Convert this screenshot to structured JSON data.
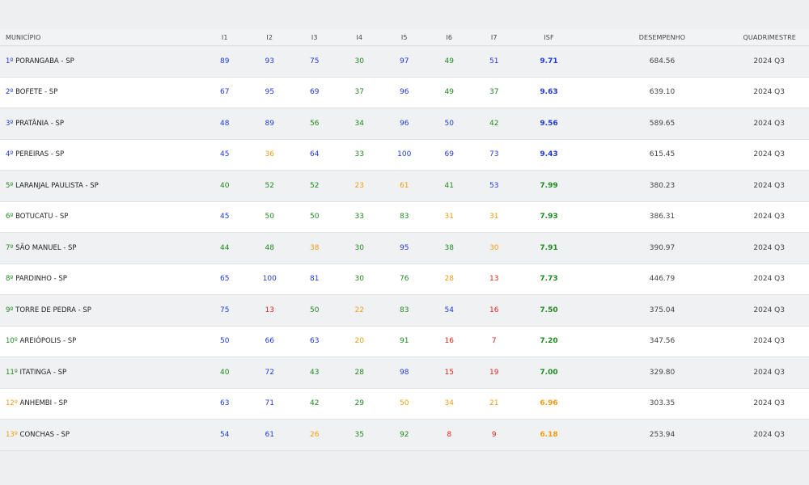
{
  "colors": {
    "blue": "#1f39d8",
    "green": "#1e8a1e",
    "orange": "#f39c12",
    "red": "#e0261c"
  },
  "header": {
    "municipio": "MUNICÍPIO",
    "i1": "I1",
    "i2": "I2",
    "i3": "I3",
    "i4": "I4",
    "i5": "I5",
    "i6": "I6",
    "i7": "I7",
    "isf": "ISF",
    "desempenho": "DESEMPENHO",
    "quadrimestre": "QUADRIMESTRE"
  },
  "rows": [
    {
      "rank": "1º",
      "name": "PORANGABA - SP",
      "rank_color": "blue",
      "i": [
        [
          "89",
          "blue"
        ],
        [
          "93",
          "blue"
        ],
        [
          "75",
          "blue"
        ],
        [
          "30",
          "green"
        ],
        [
          "97",
          "blue"
        ],
        [
          "49",
          "green"
        ],
        [
          "51",
          "blue"
        ]
      ],
      "isf": "9.71",
      "isf_color": "blue",
      "desempenho": "684.56",
      "quadrimestre": "2024 Q3"
    },
    {
      "rank": "2º",
      "name": "BOFETE - SP",
      "rank_color": "blue",
      "i": [
        [
          "67",
          "blue"
        ],
        [
          "95",
          "blue"
        ],
        [
          "69",
          "blue"
        ],
        [
          "37",
          "green"
        ],
        [
          "96",
          "blue"
        ],
        [
          "49",
          "green"
        ],
        [
          "37",
          "green"
        ]
      ],
      "isf": "9.63",
      "isf_color": "blue",
      "desempenho": "639.10",
      "quadrimestre": "2024 Q3"
    },
    {
      "rank": "3º",
      "name": "PRATÂNIA - SP",
      "rank_color": "blue",
      "i": [
        [
          "48",
          "blue"
        ],
        [
          "89",
          "blue"
        ],
        [
          "56",
          "green"
        ],
        [
          "34",
          "green"
        ],
        [
          "96",
          "blue"
        ],
        [
          "50",
          "blue"
        ],
        [
          "42",
          "green"
        ]
      ],
      "isf": "9.56",
      "isf_color": "blue",
      "desempenho": "589.65",
      "quadrimestre": "2024 Q3"
    },
    {
      "rank": "4º",
      "name": "PEREIRAS - SP",
      "rank_color": "blue",
      "i": [
        [
          "45",
          "blue"
        ],
        [
          "36",
          "orange"
        ],
        [
          "64",
          "blue"
        ],
        [
          "33",
          "green"
        ],
        [
          "100",
          "blue"
        ],
        [
          "69",
          "blue"
        ],
        [
          "73",
          "blue"
        ]
      ],
      "isf": "9.43",
      "isf_color": "blue",
      "desempenho": "615.45",
      "quadrimestre": "2024 Q3"
    },
    {
      "rank": "5º",
      "name": "LARANJAL PAULISTA - SP",
      "rank_color": "green",
      "i": [
        [
          "40",
          "green"
        ],
        [
          "52",
          "green"
        ],
        [
          "52",
          "green"
        ],
        [
          "23",
          "orange"
        ],
        [
          "61",
          "orange"
        ],
        [
          "41",
          "green"
        ],
        [
          "53",
          "blue"
        ]
      ],
      "isf": "7.99",
      "isf_color": "green",
      "desempenho": "380.23",
      "quadrimestre": "2024 Q3"
    },
    {
      "rank": "6º",
      "name": "BOTUCATU - SP",
      "rank_color": "green",
      "i": [
        [
          "45",
          "blue"
        ],
        [
          "50",
          "green"
        ],
        [
          "50",
          "green"
        ],
        [
          "33",
          "green"
        ],
        [
          "83",
          "green"
        ],
        [
          "31",
          "orange"
        ],
        [
          "31",
          "orange"
        ]
      ],
      "isf": "7.93",
      "isf_color": "green",
      "desempenho": "386.31",
      "quadrimestre": "2024 Q3"
    },
    {
      "rank": "7º",
      "name": "SÃO MANUEL - SP",
      "rank_color": "green",
      "i": [
        [
          "44",
          "green"
        ],
        [
          "48",
          "green"
        ],
        [
          "38",
          "orange"
        ],
        [
          "30",
          "green"
        ],
        [
          "95",
          "blue"
        ],
        [
          "38",
          "green"
        ],
        [
          "30",
          "orange"
        ]
      ],
      "isf": "7.91",
      "isf_color": "green",
      "desempenho": "390.97",
      "quadrimestre": "2024 Q3"
    },
    {
      "rank": "8º",
      "name": "PARDINHO - SP",
      "rank_color": "green",
      "i": [
        [
          "65",
          "blue"
        ],
        [
          "100",
          "blue"
        ],
        [
          "81",
          "blue"
        ],
        [
          "30",
          "green"
        ],
        [
          "76",
          "green"
        ],
        [
          "28",
          "orange"
        ],
        [
          "13",
          "red"
        ]
      ],
      "isf": "7.73",
      "isf_color": "green",
      "desempenho": "446.79",
      "quadrimestre": "2024 Q3"
    },
    {
      "rank": "9º",
      "name": "TORRE DE PEDRA - SP",
      "rank_color": "green",
      "i": [
        [
          "75",
          "blue"
        ],
        [
          "13",
          "red"
        ],
        [
          "50",
          "green"
        ],
        [
          "22",
          "orange"
        ],
        [
          "83",
          "green"
        ],
        [
          "54",
          "blue"
        ],
        [
          "16",
          "red"
        ]
      ],
      "isf": "7.50",
      "isf_color": "green",
      "desempenho": "375.04",
      "quadrimestre": "2024 Q3"
    },
    {
      "rank": "10º",
      "name": "AREIÓPOLIS - SP",
      "rank_color": "green",
      "i": [
        [
          "50",
          "blue"
        ],
        [
          "66",
          "blue"
        ],
        [
          "63",
          "blue"
        ],
        [
          "20",
          "orange"
        ],
        [
          "91",
          "green"
        ],
        [
          "16",
          "red"
        ],
        [
          "7",
          "red"
        ]
      ],
      "isf": "7.20",
      "isf_color": "green",
      "desempenho": "347.56",
      "quadrimestre": "2024 Q3"
    },
    {
      "rank": "11º",
      "name": "ITATINGA - SP",
      "rank_color": "green",
      "i": [
        [
          "40",
          "green"
        ],
        [
          "72",
          "blue"
        ],
        [
          "43",
          "green"
        ],
        [
          "28",
          "green"
        ],
        [
          "98",
          "blue"
        ],
        [
          "15",
          "red"
        ],
        [
          "19",
          "red"
        ]
      ],
      "isf": "7.00",
      "isf_color": "green",
      "desempenho": "329.80",
      "quadrimestre": "2024 Q3"
    },
    {
      "rank": "12º",
      "name": "ANHEMBI - SP",
      "rank_color": "orange",
      "i": [
        [
          "63",
          "blue"
        ],
        [
          "71",
          "blue"
        ],
        [
          "42",
          "green"
        ],
        [
          "29",
          "green"
        ],
        [
          "50",
          "orange"
        ],
        [
          "34",
          "orange"
        ],
        [
          "21",
          "orange"
        ]
      ],
      "isf": "6.96",
      "isf_color": "orange",
      "desempenho": "303.35",
      "quadrimestre": "2024 Q3"
    },
    {
      "rank": "13º",
      "name": "CONCHAS - SP",
      "rank_color": "orange",
      "i": [
        [
          "54",
          "blue"
        ],
        [
          "61",
          "blue"
        ],
        [
          "26",
          "orange"
        ],
        [
          "35",
          "green"
        ],
        [
          "92",
          "green"
        ],
        [
          "8",
          "red"
        ],
        [
          "9",
          "red"
        ]
      ],
      "isf": "6.18",
      "isf_color": "orange",
      "desempenho": "253.94",
      "quadrimestre": "2024 Q3"
    }
  ]
}
